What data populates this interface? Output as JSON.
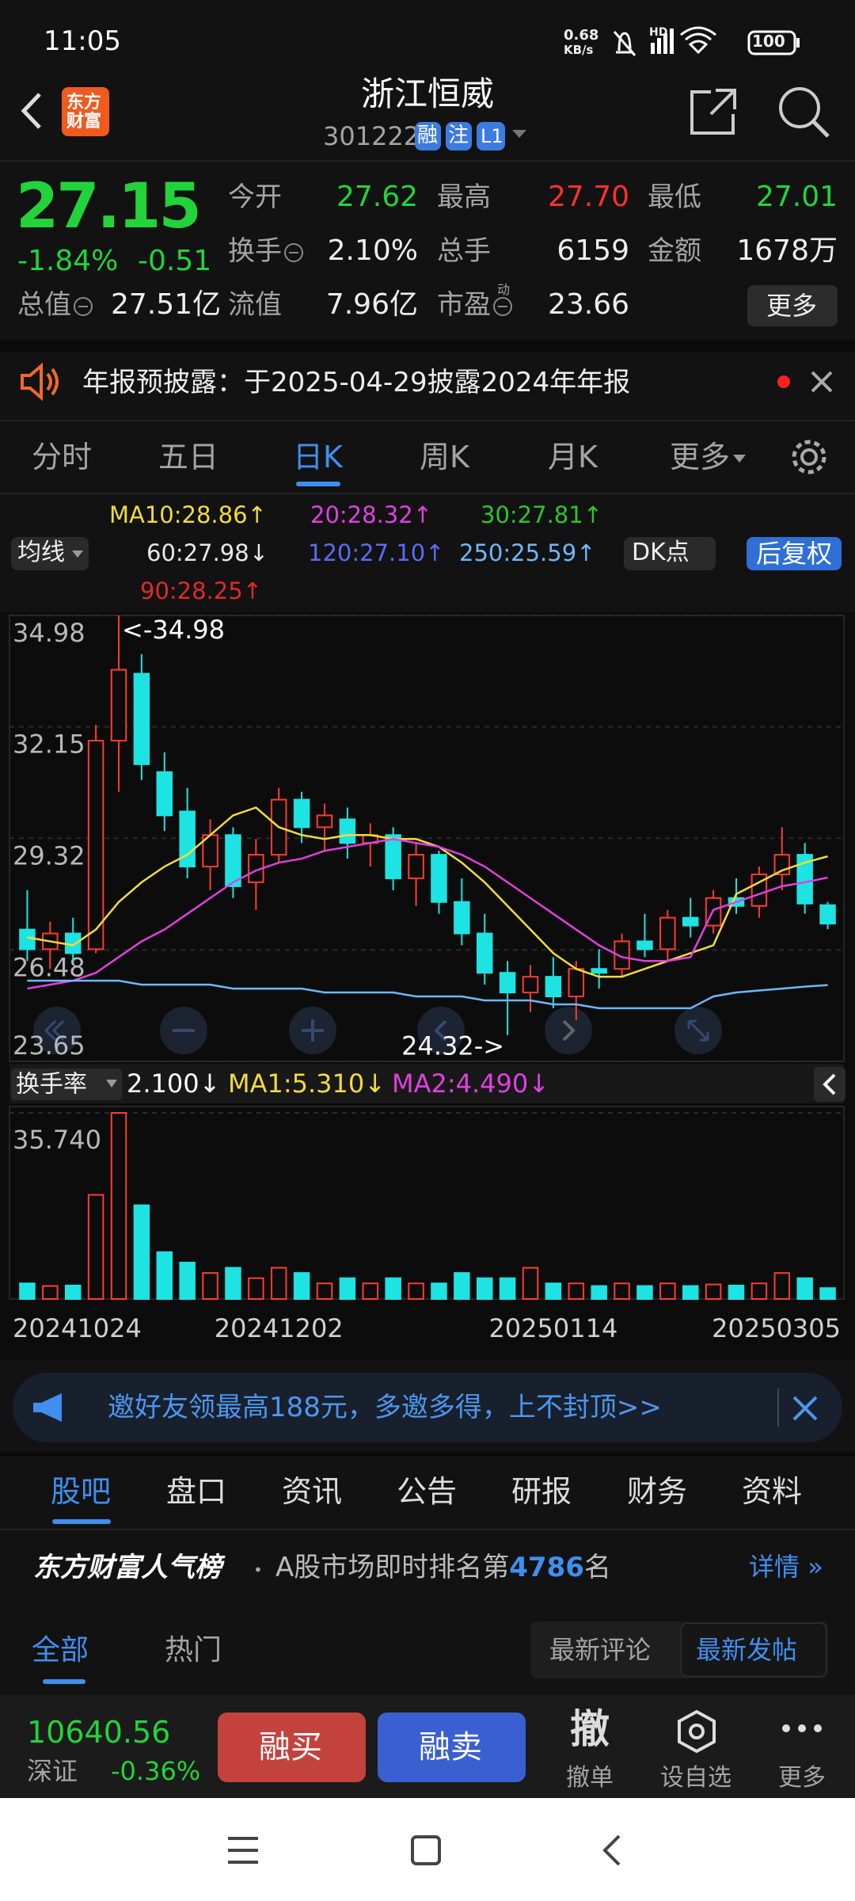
{
  "status_bar": {
    "time": "11:05",
    "net_speed": [
      "0.68",
      "KB/s"
    ],
    "network": "HD",
    "battery": "100"
  },
  "header": {
    "logo": "东方财富",
    "title": "浙江恒威",
    "code": "301222",
    "badges": [
      "融",
      "注",
      "L1"
    ]
  },
  "quote": {
    "price": "27.15",
    "change_pct": "-1.84%",
    "change": "-0.51",
    "fields": [
      {
        "label": "今开",
        "value": "27.62"
      },
      {
        "label": "最高",
        "value": "27.70"
      },
      {
        "label": "最低",
        "value": "27.01"
      },
      {
        "label": "换手",
        "value": "2.10%"
      },
      {
        "label": "总手",
        "value": "6159"
      },
      {
        "label": "金额",
        "value": "1678万"
      },
      {
        "label": "总值",
        "value": "27.51亿"
      },
      {
        "label": "流值",
        "value": "7.96亿"
      },
      {
        "label": "市盈",
        "note": "动",
        "value": "23.66"
      }
    ],
    "more": "更多"
  },
  "notice": "年报预披露：于2025-04-29披露2024年年报",
  "period_tabs": [
    "分时",
    "五日",
    "日K",
    "周K",
    "月K",
    "更多"
  ],
  "ma_legend": {
    "selector": "均线",
    "entries": [
      {
        "text": "MA10:28.86↑",
        "color": "#f2dc3a"
      },
      {
        "text": "20:28.32↑",
        "color": "#e040e0"
      },
      {
        "text": "30:27.81↑",
        "color": "#2ec42e"
      },
      {
        "text": "60:27.98↓",
        "color": "#e8e8e8"
      },
      {
        "text": "120:27.10↑",
        "color": "#5a6cf5"
      },
      {
        "text": "250:25.59↑",
        "color": "#6cb8ff"
      },
      {
        "text": "90:28.25↑",
        "color": "#e02a2a"
      }
    ],
    "dk": "DK点",
    "adjust": "后复权"
  },
  "chart_data": [
    {
      "type": "candlestick",
      "ylim": [
        23.65,
        34.98
      ],
      "yticks": [
        34.98,
        32.15,
        29.32,
        26.48,
        23.65
      ],
      "grid": true,
      "up_color": "#ff3b30",
      "down_color": "#1ee3e3",
      "categories": [
        "20241024",
        null,
        null,
        null,
        null,
        null,
        null,
        null,
        null,
        null,
        null,
        "20241202",
        null,
        null,
        null,
        null,
        null,
        null,
        null,
        null,
        null,
        null,
        null,
        "20250114",
        null,
        null,
        null,
        null,
        null,
        null,
        null,
        null,
        null,
        null,
        null,
        "20250305"
      ],
      "open": [
        27.0,
        26.5,
        26.9,
        26.5,
        31.8,
        33.5,
        31.0,
        30.0,
        28.6,
        29.4,
        28.2,
        28.9,
        30.3,
        29.6,
        29.8,
        29.2,
        29.4,
        28.3,
        28.9,
        27.7,
        26.9,
        25.9,
        25.4,
        25.8,
        25.3,
        26.0,
        26.0,
        26.7,
        26.5,
        27.3,
        27.1,
        27.8,
        27.6,
        28.4,
        28.9,
        27.62
      ],
      "high": [
        28.0,
        27.2,
        27.3,
        32.2,
        34.98,
        34.0,
        31.5,
        30.6,
        29.8,
        29.6,
        29.3,
        30.6,
        30.5,
        30.2,
        30.1,
        29.7,
        29.6,
        29.2,
        29.0,
        28.3,
        27.4,
        26.2,
        26.1,
        26.3,
        26.2,
        26.5,
        26.9,
        27.4,
        27.5,
        27.8,
        28.0,
        28.3,
        28.6,
        29.6,
        29.2,
        27.7
      ],
      "low": [
        26.2,
        26.0,
        26.2,
        26.4,
        30.5,
        30.8,
        29.5,
        28.3,
        28.0,
        27.8,
        27.5,
        28.7,
        29.2,
        29.0,
        28.8,
        28.6,
        28.0,
        27.6,
        27.4,
        26.6,
        25.6,
        24.32,
        24.9,
        25.0,
        24.7,
        25.5,
        25.8,
        26.3,
        26.2,
        26.8,
        26.9,
        27.4,
        27.3,
        28.0,
        27.4,
        27.01
      ],
      "close": [
        26.5,
        26.9,
        26.4,
        31.8,
        33.6,
        31.2,
        29.9,
        28.6,
        29.4,
        28.1,
        28.9,
        30.3,
        29.6,
        29.9,
        29.2,
        29.4,
        28.3,
        28.9,
        27.7,
        26.9,
        25.9,
        25.4,
        25.8,
        25.3,
        26.0,
        25.9,
        26.7,
        26.5,
        27.3,
        27.1,
        27.8,
        27.6,
        28.4,
        28.9,
        27.66,
        27.15
      ],
      "lines": [
        {
          "color": "#f2dc3a",
          "values": [
            26.8,
            26.7,
            26.6,
            27.0,
            27.7,
            28.2,
            28.6,
            28.9,
            29.4,
            29.9,
            30.1,
            29.6,
            29.4,
            29.3,
            29.4,
            29.4,
            29.3,
            29.3,
            29.1,
            28.7,
            28.2,
            27.6,
            27.0,
            26.4,
            26.0,
            25.8,
            25.8,
            26.0,
            26.2,
            26.4,
            26.6,
            27.9,
            28.2,
            28.5,
            28.7,
            28.86
          ]
        },
        {
          "color": "#e040e0",
          "values": [
            25.5,
            25.6,
            25.7,
            25.9,
            26.3,
            26.7,
            27.0,
            27.4,
            27.8,
            28.2,
            28.5,
            28.7,
            28.8,
            29.0,
            29.1,
            29.2,
            29.3,
            29.2,
            29.1,
            28.9,
            28.6,
            28.2,
            27.8,
            27.4,
            27.0,
            26.6,
            26.3,
            26.2,
            26.2,
            26.3,
            27.5,
            27.7,
            27.9,
            28.1,
            28.2,
            28.32
          ]
        },
        {
          "color": "#6cb8ff",
          "values": [
            25.7,
            25.7,
            25.7,
            25.7,
            25.7,
            25.6,
            25.6,
            25.6,
            25.6,
            25.5,
            25.5,
            25.5,
            25.5,
            25.4,
            25.4,
            25.4,
            25.4,
            25.3,
            25.3,
            25.3,
            25.2,
            25.2,
            25.2,
            25.1,
            25.1,
            25.0,
            25.0,
            25.0,
            25.0,
            25.0,
            25.3,
            25.4,
            25.45,
            25.5,
            25.55,
            25.59
          ]
        }
      ],
      "annotations": [
        {
          "text": "<-34.98",
          "index": 4,
          "value": 34.98
        },
        {
          "text": "24.32->",
          "index": 21,
          "value": 24.32
        }
      ]
    },
    {
      "type": "bar",
      "indicator": "换手率",
      "legend": [
        {
          "text": "2.100↓",
          "color": "#ffffff"
        },
        {
          "text": "MA1:5.310↓",
          "color": "#f2dc3a"
        },
        {
          "text": "MA2:4.490↓",
          "color": "#e040e0"
        }
      ],
      "ylim": [
        0,
        35.74
      ],
      "yticks": [
        {
          "value": 35.74,
          "label": "35.740"
        }
      ],
      "values": [
        3,
        2.5,
        2.6,
        20,
        35.74,
        18,
        9,
        7,
        5,
        6,
        4,
        6,
        5,
        3,
        4,
        3,
        4,
        3,
        3,
        5,
        4,
        4,
        6,
        3,
        3,
        2.5,
        3,
        2.5,
        3,
        2.5,
        2.8,
        2.6,
        3,
        5,
        4,
        2.1
      ]
    }
  ],
  "banner": "邀好友领最高188元，多邀多得，上不封顶>>",
  "section_tabs": [
    "股吧",
    "盘口",
    "资讯",
    "公告",
    "研报",
    "财务",
    "资料"
  ],
  "ranking": {
    "brand": "东方财富人气榜",
    "text": "A股市场即时排名第",
    "rank": "4786",
    "suffix": "名",
    "link": "详情"
  },
  "sub_tabs": [
    "全部",
    "热门"
  ],
  "sort": [
    "最新评论",
    "最新发帖"
  ],
  "bottom_bar": {
    "index_value": "10640.56",
    "index_name": "深证",
    "index_change": "-0.36%",
    "buy": "融买",
    "sell": "融卖",
    "cancel_icon": "撤",
    "cancel": "撤单",
    "watch": "设自选",
    "more": "更多"
  }
}
